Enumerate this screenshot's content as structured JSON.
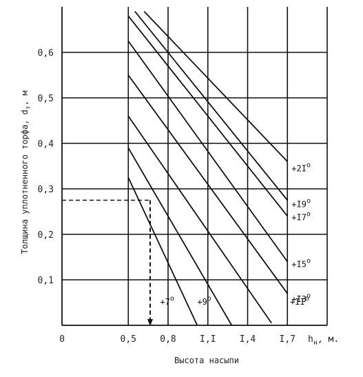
{
  "chart_data": {
    "type": "line",
    "xlabel": "Высота насыпи",
    "ylabel": "Толщина уплотненного торфа, d",
    "ylabel_sub": "т",
    "ylabel_unit": ", м",
    "xaxis_end_label": "h",
    "xaxis_end_sub": "н",
    "xaxis_end_unit": ", м.",
    "xlim": [
      0,
      2.0
    ],
    "ylim": [
      0,
      0.7
    ],
    "x_ticks": [
      0,
      0.5,
      0.8,
      1.1,
      1.4,
      1.7
    ],
    "x_tick_labels": [
      "0",
      "0,5",
      "0,8",
      "I,I",
      "I,4",
      "I,7"
    ],
    "y_ticks": [
      0.1,
      0.2,
      0.3,
      0.4,
      0.5,
      0.6
    ],
    "y_tick_labels": [
      "0,1",
      "0,2",
      "0,3",
      "0,4",
      "0,5",
      "0,6"
    ],
    "grid": true,
    "series": [
      {
        "name": "+7°",
        "label_text": "+7",
        "label_deg": "o",
        "x": [
          0.5,
          1.02
        ],
        "y": [
          0.325,
          0.0
        ]
      },
      {
        "name": "+9°",
        "label_text": "+9",
        "label_deg": "o",
        "x": [
          0.5,
          1.28
        ],
        "y": [
          0.39,
          0.0
        ]
      },
      {
        "name": "+11°",
        "label_text": "+II",
        "label_deg": "o",
        "x": [
          0.5,
          1.58
        ],
        "y": [
          0.46,
          0.005
        ]
      },
      {
        "name": "+13°",
        "label_text": "+I3",
        "label_deg": "o",
        "x": [
          0.5,
          1.7
        ],
        "y": [
          0.55,
          0.07
        ]
      },
      {
        "name": "+15°",
        "label_text": "+I5",
        "label_deg": "o",
        "x": [
          0.5,
          1.7
        ],
        "y": [
          0.625,
          0.14
        ]
      },
      {
        "name": "+17°",
        "label_text": "+I7",
        "label_deg": "o",
        "x": [
          0.5,
          1.7
        ],
        "y": [
          0.68,
          0.24
        ]
      },
      {
        "name": "+19°",
        "label_text": "+I9",
        "label_deg": "o",
        "x": [
          0.55,
          1.7
        ],
        "y": [
          0.69,
          0.275
        ]
      },
      {
        "name": "+21°",
        "label_text": "+2I",
        "label_deg": "o",
        "x": [
          0.62,
          1.7
        ],
        "y": [
          0.69,
          0.36
        ]
      }
    ],
    "guide": {
      "x": 0.665,
      "y": 0.275,
      "style": "dashed-arrow"
    }
  }
}
